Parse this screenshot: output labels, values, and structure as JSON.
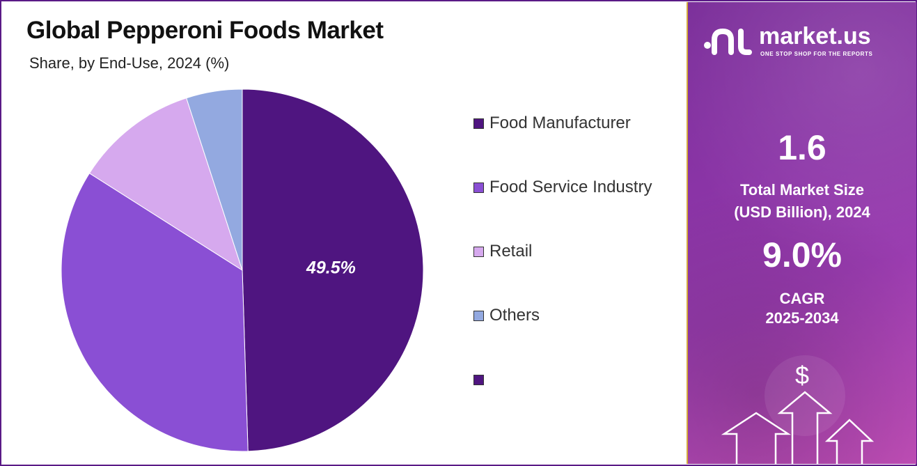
{
  "header": {
    "title": "Global Pepperoni Foods Market",
    "subtitle": "Share, by End-Use, 2024 (%)"
  },
  "chart_data": {
    "type": "pie",
    "title": "Global Pepperoni Foods Market",
    "subtitle": "Share, by End-Use, 2024 (%)",
    "categories": [
      "Food Manufacturer",
      "Food Service Industry",
      "Retail",
      "Others",
      ""
    ],
    "values": [
      49.5,
      34.5,
      11.0,
      5.0,
      0
    ],
    "colors": [
      "#4f1580",
      "#8a4fd4",
      "#d6a9ee",
      "#93a9e0",
      "#4f1580"
    ],
    "data_labels": [
      "49.5%",
      "",
      "",
      "",
      ""
    ],
    "legend_position": "right"
  },
  "sidebar": {
    "brand": "market.us",
    "tagline": "ONE STOP SHOP FOR THE REPORTS",
    "market_size_value": "1.6",
    "market_size_label_line1": "Total Market Size",
    "market_size_label_line2": "(USD Billion), 2024",
    "cagr_value": "9.0%",
    "cagr_label_line1": "CAGR",
    "cagr_label_line2": "2025-2034",
    "currency_symbol": "$"
  }
}
